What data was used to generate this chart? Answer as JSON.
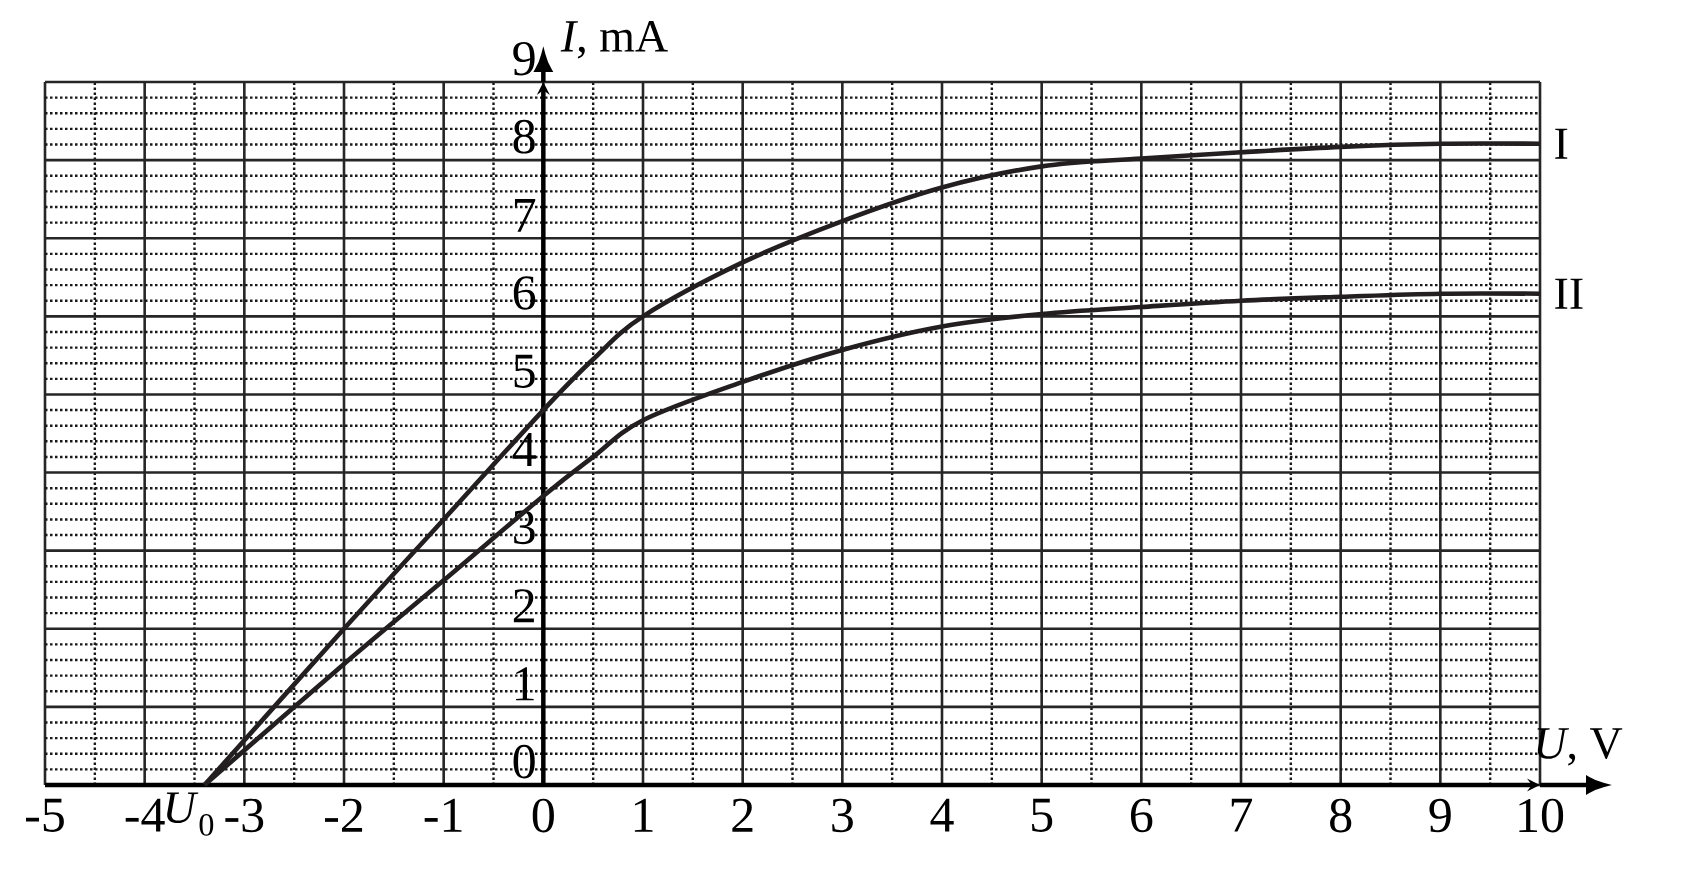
{
  "chart_data": {
    "type": "line",
    "xlabel": "*U*, V",
    "ylabel": "*I*, mA",
    "x": [
      -3.4,
      -2,
      -1,
      0,
      0.5,
      1,
      2,
      3,
      4,
      5,
      6,
      7,
      8,
      9,
      10
    ],
    "series": [
      {
        "name": "I",
        "color": "#231f20",
        "values": [
          0,
          2.0,
          3.4,
          4.8,
          5.45,
          6.0,
          6.69,
          7.22,
          7.65,
          7.92,
          8.02,
          8.1,
          8.17,
          8.21,
          8.21
        ]
      },
      {
        "name": "II",
        "color": "#231f20",
        "values": [
          0,
          1.55,
          2.62,
          3.7,
          4.2,
          4.67,
          5.16,
          5.57,
          5.87,
          6.03,
          6.12,
          6.2,
          6.25,
          6.29,
          6.29
        ]
      }
    ],
    "xlim": [
      -5,
      10
    ],
    "ylim": [
      0,
      9
    ],
    "xticks": [
      -5,
      -4,
      -3,
      -2,
      -1,
      0,
      1,
      2,
      3,
      4,
      5,
      6,
      7,
      8,
      9,
      10
    ],
    "yticks": [
      0,
      1,
      2,
      3,
      4,
      5,
      6,
      7,
      8,
      9
    ],
    "grid": true,
    "annotations": [
      {
        "text": "*U*$_{0}$",
        "x": -3.4,
        "y": 0
      }
    ]
  }
}
